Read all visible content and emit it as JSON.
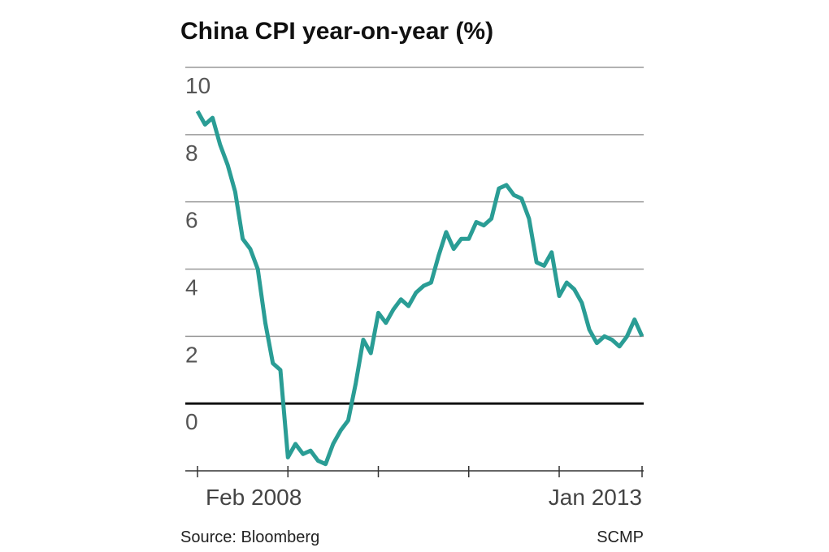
{
  "chart_data": {
    "type": "line",
    "title": "China CPI year-on-year (%)",
    "source": "Source: Bloomberg",
    "credit": "SCMP",
    "categories": [
      "Feb 2008",
      null,
      null,
      null,
      null,
      null,
      null,
      null,
      null,
      null,
      null,
      null,
      null,
      null,
      null,
      null,
      null,
      null,
      null,
      null,
      null,
      null,
      null,
      null,
      null,
      null,
      null,
      null,
      null,
      null,
      null,
      null,
      null,
      null,
      null,
      null,
      null,
      null,
      null,
      null,
      null,
      null,
      null,
      null,
      null,
      null,
      null,
      null,
      null,
      null,
      null,
      null,
      null,
      null,
      null,
      null,
      null,
      null,
      null,
      "Jan 2013"
    ],
    "series": [
      {
        "color": "#2a9d95",
        "values": [
          8.7,
          8.3,
          8.5,
          7.7,
          7.1,
          6.3,
          4.9,
          4.6,
          4.0,
          2.4,
          1.2,
          1.0,
          -1.6,
          -1.2,
          -1.5,
          -1.4,
          -1.7,
          -1.8,
          -1.2,
          -0.8,
          -0.5,
          0.6,
          1.9,
          1.5,
          2.7,
          2.4,
          2.8,
          3.1,
          2.9,
          3.3,
          3.5,
          3.6,
          4.4,
          5.1,
          4.6,
          4.9,
          4.9,
          5.4,
          5.3,
          5.5,
          6.4,
          6.5,
          6.2,
          6.1,
          5.5,
          4.2,
          4.1,
          4.5,
          3.2,
          3.6,
          3.4,
          3.0,
          2.2,
          1.8,
          2.0,
          1.9,
          1.7,
          2.0,
          2.5,
          2.0
        ]
      }
    ],
    "ylim": [
      -2,
      10
    ],
    "yticks": [
      0,
      2,
      4,
      6,
      8,
      10
    ],
    "grid": true
  }
}
